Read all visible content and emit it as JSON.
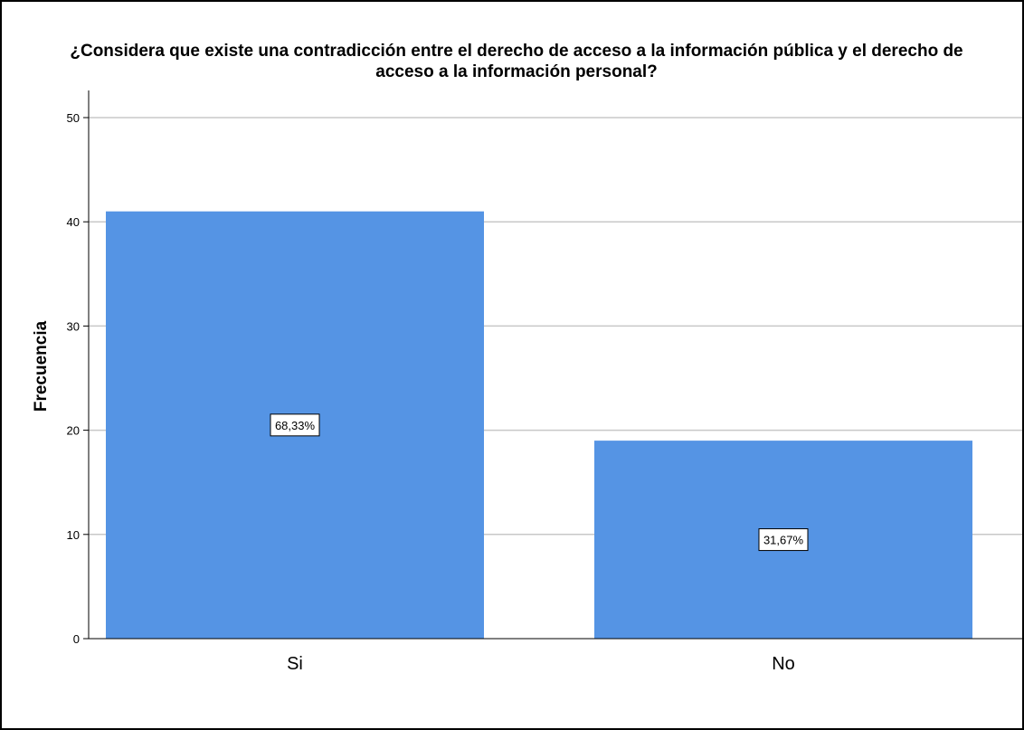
{
  "chart_data": {
    "type": "bar",
    "title_lines": [
      "¿Considera que existe una contradicción entre el derecho de acceso a la información pública y el derecho de",
      "acceso a la información personal?"
    ],
    "xlabel": "",
    "ylabel": "Frecuencia",
    "categories": [
      "Si",
      "No"
    ],
    "values": [
      41,
      19
    ],
    "data_labels": [
      "68,33%",
      "31,67%"
    ],
    "ylim": [
      0,
      50
    ],
    "yticks": [
      0,
      10,
      20,
      30,
      40,
      50
    ],
    "ytick_labels": [
      "0",
      "10",
      "20",
      "30",
      "40",
      "50"
    ],
    "grid": true,
    "bar_color": "#5594e4",
    "grid_color": "#c8c8c8"
  }
}
